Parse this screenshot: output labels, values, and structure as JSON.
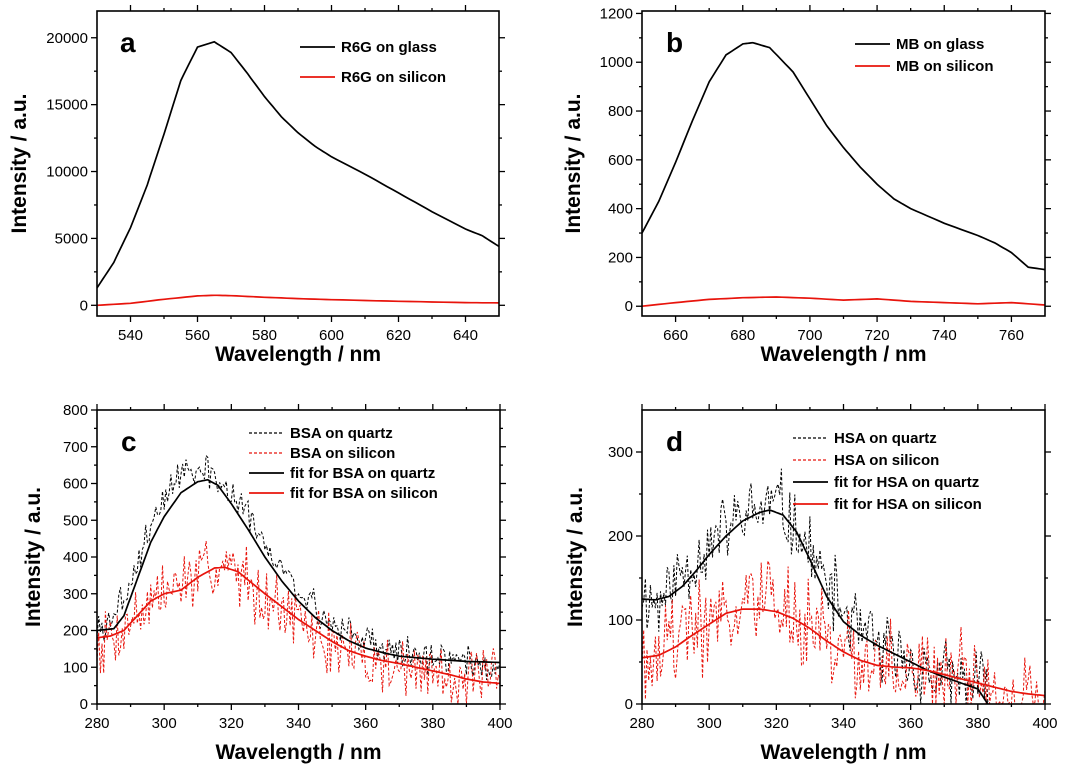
{
  "chart_data": [
    {
      "type": "line",
      "panel": "a",
      "xlabel": "Wavelength / nm",
      "ylabel": "Intensity / a.u.",
      "xlim": [
        530,
        650
      ],
      "ylim": [
        -800,
        22000
      ],
      "xticks": [
        540,
        560,
        580,
        600,
        620,
        640
      ],
      "yticks": [
        0,
        5000,
        10000,
        15000,
        20000
      ],
      "legend_position": "top-right",
      "series": [
        {
          "name": "R6G on glass",
          "color": "#000000",
          "style": "solid",
          "x": [
            530,
            535,
            540,
            545,
            550,
            555,
            560,
            565,
            570,
            575,
            580,
            585,
            590,
            595,
            600,
            610,
            620,
            630,
            640,
            645,
            650
          ],
          "y": [
            1300,
            3200,
            5800,
            9000,
            12800,
            16800,
            19300,
            19700,
            18900,
            17300,
            15600,
            14100,
            12900,
            11900,
            11100,
            9800,
            8400,
            7000,
            5700,
            5200,
            4400
          ]
        },
        {
          "name": "R6G on silicon",
          "color": "#e8140c",
          "style": "solid",
          "x": [
            530,
            540,
            550,
            560,
            565,
            570,
            580,
            590,
            600,
            620,
            640,
            650
          ],
          "y": [
            0,
            150,
            450,
            700,
            750,
            720,
            600,
            500,
            420,
            300,
            200,
            180
          ]
        }
      ]
    },
    {
      "type": "line",
      "panel": "b",
      "xlabel": "Wavelength / nm",
      "ylabel": "Intensity / a.u.",
      "xlim": [
        650,
        770
      ],
      "ylim": [
        -40,
        1210
      ],
      "xticks": [
        660,
        680,
        700,
        720,
        740,
        760
      ],
      "yticks": [
        0,
        200,
        400,
        600,
        800,
        1000,
        1200
      ],
      "legend_position": "top-right",
      "series": [
        {
          "name": "MB on glass",
          "color": "#000000",
          "style": "solid",
          "x": [
            650,
            655,
            660,
            665,
            670,
            675,
            680,
            683,
            688,
            695,
            700,
            705,
            710,
            715,
            720,
            725,
            730,
            740,
            750,
            755,
            760,
            765,
            770
          ],
          "y": [
            300,
            430,
            590,
            760,
            920,
            1030,
            1075,
            1080,
            1060,
            960,
            850,
            740,
            650,
            570,
            500,
            440,
            400,
            340,
            290,
            260,
            220,
            160,
            150
          ]
        },
        {
          "name": "MB on silicon",
          "color": "#e8140c",
          "style": "solid",
          "x": [
            650,
            660,
            670,
            680,
            690,
            700,
            710,
            720,
            730,
            740,
            750,
            760,
            770
          ],
          "y": [
            0,
            15,
            28,
            35,
            38,
            33,
            25,
            30,
            20,
            15,
            10,
            15,
            5
          ]
        }
      ]
    },
    {
      "type": "line",
      "panel": "c",
      "xlabel": "Wavelength / nm",
      "ylabel": "Intensity / a.u.",
      "xlim": [
        280,
        400
      ],
      "ylim": [
        0,
        800
      ],
      "xticks": [
        280,
        300,
        320,
        340,
        360,
        380,
        400
      ],
      "yticks": [
        0,
        100,
        200,
        300,
        400,
        500,
        600,
        700,
        800
      ],
      "legend_position": "top-right",
      "series": [
        {
          "name": "BSA on quartz",
          "color": "#000000",
          "style": "dashed",
          "x": [
            280,
            285,
            290,
            295,
            300,
            305,
            310,
            315,
            320,
            325,
            330,
            335,
            340,
            345,
            350,
            355,
            360,
            365,
            370,
            375,
            380,
            385,
            390,
            395,
            400
          ],
          "y": [
            200,
            240,
            330,
            470,
            560,
            620,
            640,
            620,
            560,
            510,
            430,
            370,
            300,
            260,
            220,
            200,
            175,
            160,
            140,
            135,
            130,
            120,
            115,
            110,
            110
          ],
          "noise": 55,
          "seed": 3
        },
        {
          "name": "BSA on silicon",
          "color": "#e8140c",
          "style": "dashed",
          "x": [
            280,
            285,
            290,
            295,
            300,
            305,
            310,
            315,
            320,
            325,
            330,
            335,
            340,
            345,
            350,
            355,
            360,
            365,
            370,
            375,
            380,
            385,
            390,
            395,
            400
          ],
          "y": [
            170,
            190,
            230,
            270,
            300,
            330,
            350,
            370,
            370,
            340,
            300,
            260,
            220,
            190,
            160,
            140,
            120,
            110,
            100,
            90,
            90,
            80,
            70,
            60,
            55
          ],
          "noise": 110,
          "seed": 7
        },
        {
          "name": "fit for BSA on quartz",
          "color": "#000000",
          "style": "solid",
          "x": [
            280,
            285,
            288,
            292,
            296,
            300,
            305,
            310,
            313,
            316,
            320,
            325,
            330,
            335,
            340,
            345,
            350,
            355,
            360,
            365,
            370,
            380,
            390,
            400
          ],
          "y": [
            200,
            205,
            240,
            340,
            440,
            510,
            575,
            605,
            610,
            595,
            545,
            475,
            400,
            335,
            280,
            235,
            200,
            172,
            152,
            140,
            130,
            122,
            116,
            113
          ]
        },
        {
          "name": "fit for BSA on silicon",
          "color": "#e8140c",
          "style": "solid",
          "x": [
            280,
            284,
            288,
            292,
            296,
            300,
            305,
            310,
            315,
            318,
            322,
            326,
            330,
            335,
            340,
            345,
            350,
            355,
            360,
            365,
            370,
            375,
            380,
            385,
            390,
            395,
            400
          ],
          "y": [
            180,
            185,
            200,
            240,
            280,
            300,
            310,
            345,
            370,
            372,
            360,
            330,
            300,
            265,
            230,
            200,
            170,
            145,
            130,
            118,
            110,
            100,
            90,
            80,
            68,
            60,
            56
          ]
        }
      ]
    },
    {
      "type": "line",
      "panel": "d",
      "xlabel": "Wavelength / nm",
      "ylabel": "Intensity / a.u.",
      "xlim": [
        280,
        400
      ],
      "ylim": [
        0,
        350
      ],
      "xticks": [
        280,
        300,
        320,
        340,
        360,
        380,
        400
      ],
      "yticks": [
        0,
        100,
        200,
        300
      ],
      "legend_position": "top-right",
      "series": [
        {
          "name": "HSA on quartz",
          "color": "#000000",
          "style": "dashed",
          "x": [
            280,
            285,
            290,
            295,
            300,
            305,
            310,
            315,
            320,
            325,
            330,
            335,
            340,
            345,
            350,
            355,
            360,
            365,
            370,
            375,
            380,
            383
          ],
          "y": [
            130,
            120,
            150,
            170,
            190,
            210,
            220,
            230,
            240,
            215,
            180,
            140,
            110,
            85,
            70,
            55,
            45,
            35,
            30,
            25,
            20,
            10
          ],
          "noise": 55,
          "seed": 11
        },
        {
          "name": "HSA on silicon",
          "color": "#e8140c",
          "style": "dashed",
          "x": [
            280,
            285,
            290,
            295,
            300,
            305,
            310,
            315,
            320,
            325,
            330,
            335,
            340,
            345,
            350,
            355,
            360,
            365,
            370,
            375,
            380,
            385,
            390,
            395,
            400
          ],
          "y": [
            60,
            70,
            80,
            90,
            100,
            110,
            115,
            118,
            115,
            105,
            90,
            75,
            60,
            50,
            45,
            40,
            38,
            35,
            30,
            25,
            20,
            18,
            15,
            12,
            10
          ],
          "noise": 70,
          "seed": 19
        },
        {
          "name": "fit for HSA on quartz",
          "color": "#000000",
          "style": "solid",
          "x": [
            280,
            284,
            288,
            292,
            296,
            300,
            305,
            310,
            315,
            318,
            322,
            326,
            330,
            335,
            340,
            345,
            350,
            355,
            360,
            365,
            370,
            375,
            380,
            383
          ],
          "y": [
            125,
            124,
            128,
            140,
            158,
            178,
            200,
            218,
            228,
            231,
            225,
            205,
            172,
            128,
            98,
            82,
            70,
            60,
            50,
            40,
            32,
            25,
            18,
            0
          ]
        },
        {
          "name": "fit for HSA on silicon",
          "color": "#e8140c",
          "style": "solid",
          "x": [
            280,
            285,
            290,
            295,
            300,
            305,
            310,
            315,
            320,
            325,
            330,
            335,
            340,
            345,
            350,
            355,
            360,
            365,
            370,
            375,
            380,
            385,
            390,
            395,
            400
          ],
          "y": [
            55,
            58,
            68,
            82,
            95,
            108,
            113,
            113,
            110,
            102,
            90,
            75,
            62,
            52,
            46,
            44,
            43,
            40,
            35,
            30,
            25,
            20,
            15,
            12,
            10
          ]
        }
      ]
    }
  ]
}
